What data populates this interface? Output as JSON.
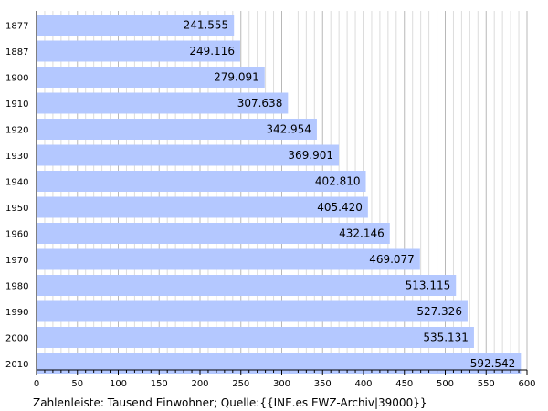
{
  "chart_data": {
    "type": "bar",
    "orientation": "horizontal",
    "categories": [
      "1877",
      "1887",
      "1900",
      "1910",
      "1920",
      "1930",
      "1940",
      "1950",
      "1960",
      "1970",
      "1980",
      "1990",
      "2000",
      "2010"
    ],
    "values": [
      241.555,
      249.116,
      279.091,
      307.638,
      342.954,
      369.901,
      402.81,
      405.42,
      432.146,
      469.077,
      513.115,
      527.326,
      535.131,
      592.542
    ],
    "data_labels": [
      "241.555",
      "249.116",
      "279.091",
      "307.638",
      "342.954",
      "369.901",
      "402.810",
      "405.420",
      "432.146",
      "469.077",
      "513.115",
      "527.326",
      "535.131",
      "592.542"
    ],
    "x_ticks": [
      0,
      50,
      100,
      150,
      200,
      250,
      300,
      350,
      400,
      450,
      500,
      550,
      600
    ],
    "xlim": [
      0,
      600
    ],
    "grid": true,
    "bar_color": "#b4c8ff",
    "caption": "Zahlenleiste: Tausend Einwohner; Quelle:{{INE.es EWZ-Archiv|39000}}"
  }
}
